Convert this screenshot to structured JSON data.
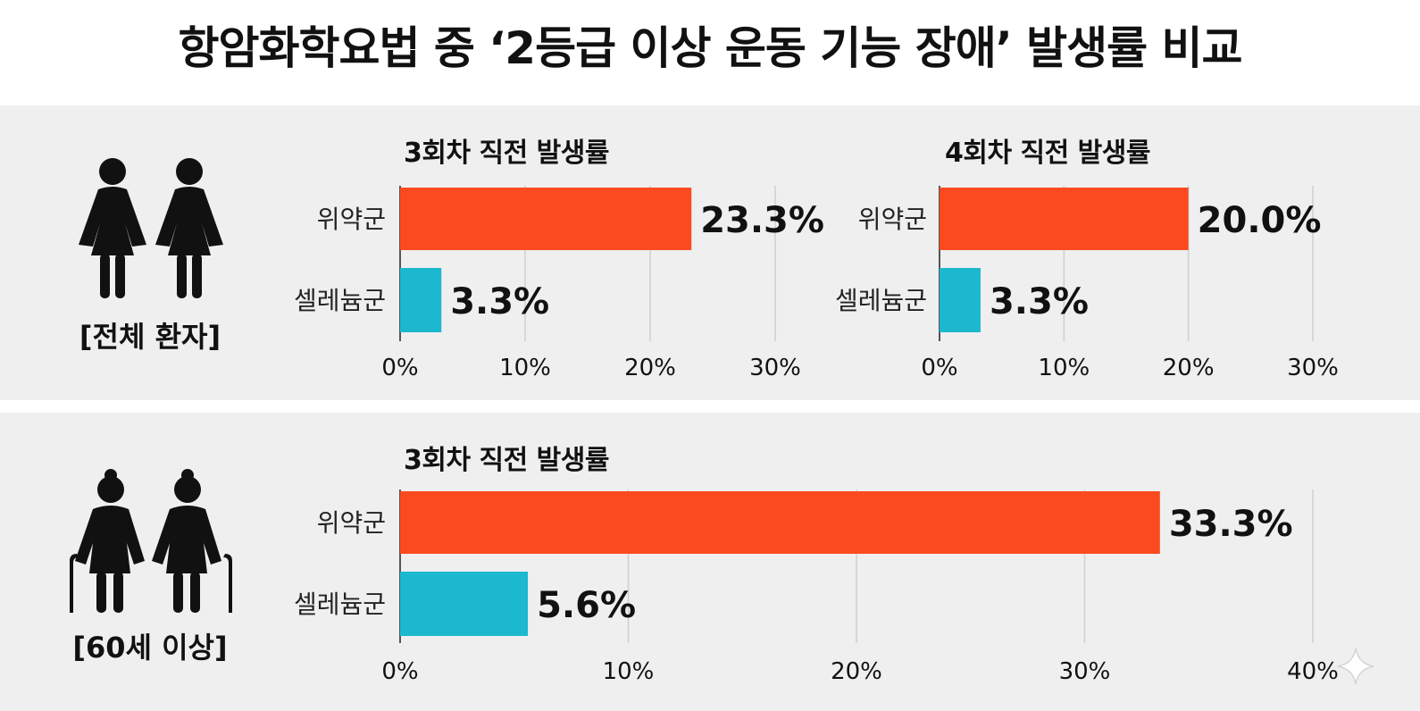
{
  "title": "항암화학요법 중 ‘2등급 이상 운동 기능 장애’ 발생률 비교",
  "groups": {
    "all": {
      "label": "[전체 환자]",
      "icon": "two-women-icon"
    },
    "elderly": {
      "label": "[60세 이상]",
      "icon": "elderly-couple-with-canes-icon"
    }
  },
  "colors": {
    "placebo": "#fb4a1f",
    "celenium": "#1cb8cf",
    "band": "#efefef",
    "grid": "#cfcfcf"
  },
  "chart_data": [
    {
      "type": "bar",
      "orientation": "horizontal",
      "group": "[전체 환자]",
      "title": "3회차 직전 발생률",
      "categories": [
        "위약군",
        "셀레늄군"
      ],
      "values": [
        23.3,
        3.3
      ],
      "value_labels": [
        "23.3%",
        "3.3%"
      ],
      "xlim": [
        0,
        30
      ],
      "xticks": [
        "0%",
        "10%",
        "20%",
        "30%"
      ],
      "grid": true
    },
    {
      "type": "bar",
      "orientation": "horizontal",
      "group": "[전체 환자]",
      "title": "4회차 직전 발생률",
      "categories": [
        "위약군",
        "셀레늄군"
      ],
      "values": [
        20.0,
        3.3
      ],
      "value_labels": [
        "20.0%",
        "3.3%"
      ],
      "xlim": [
        0,
        30
      ],
      "xticks": [
        "0%",
        "10%",
        "20%",
        "30%"
      ],
      "grid": true
    },
    {
      "type": "bar",
      "orientation": "horizontal",
      "group": "[60세 이상]",
      "title": "3회차 직전 발생률",
      "categories": [
        "위약군",
        "셀레늄군"
      ],
      "values": [
        33.3,
        5.6
      ],
      "value_labels": [
        "33.3%",
        "5.6%"
      ],
      "xlim": [
        0,
        40
      ],
      "xticks": [
        "0%",
        "10%",
        "20%",
        "30%",
        "40%"
      ],
      "grid": true
    }
  ]
}
